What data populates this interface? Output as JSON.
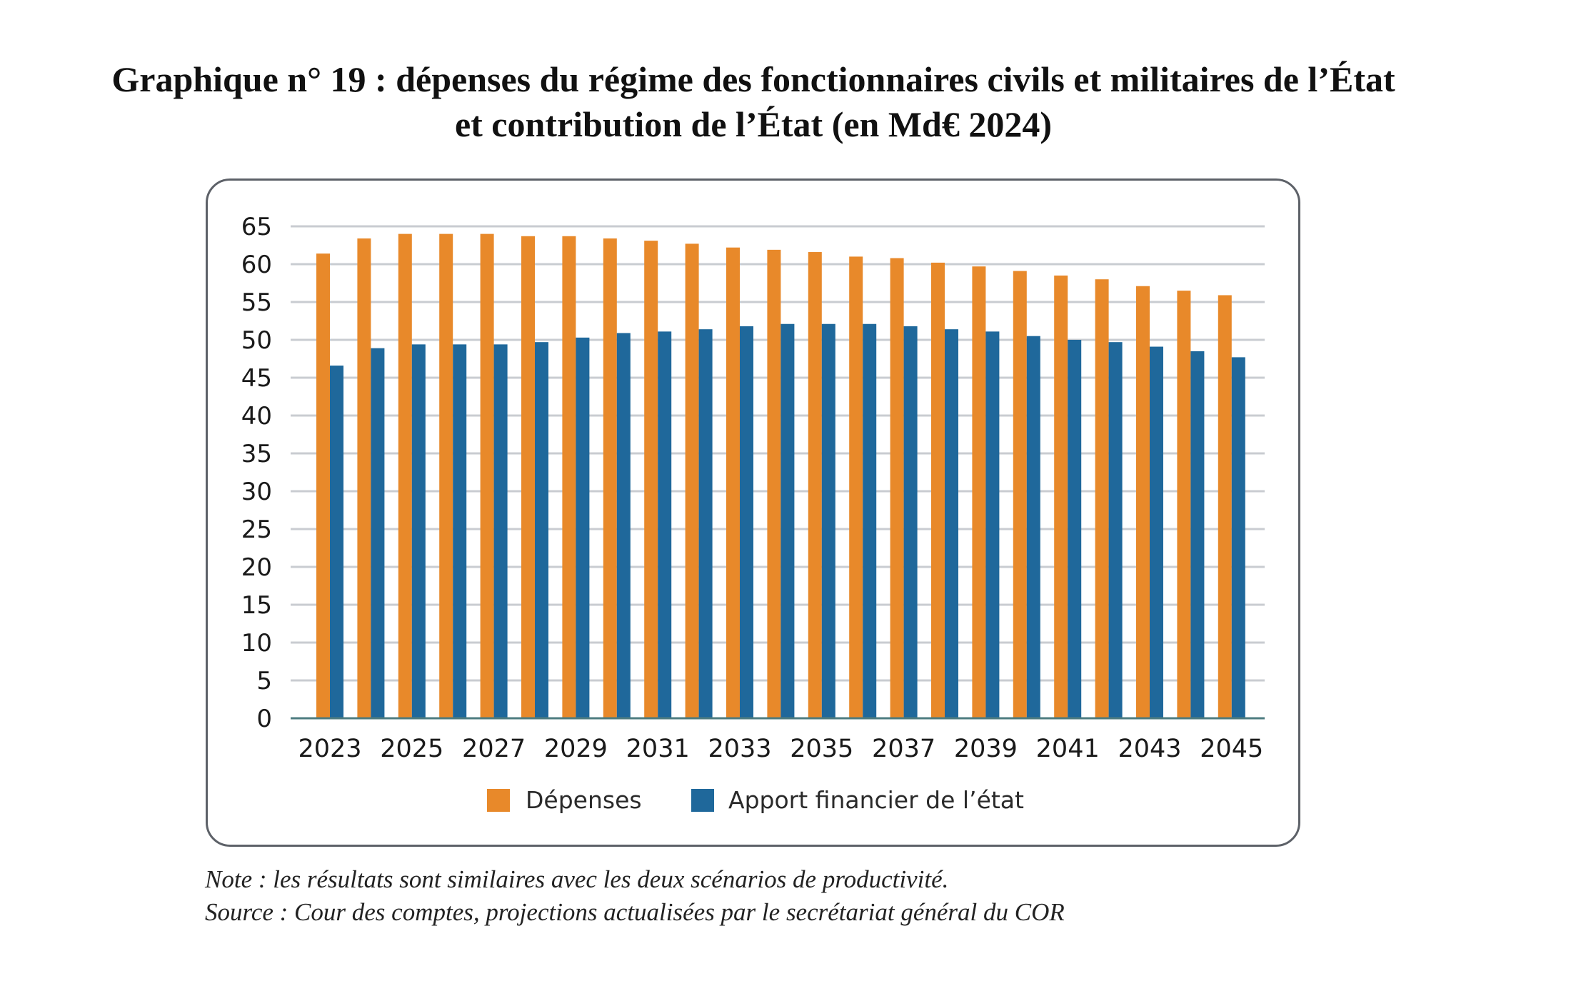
{
  "title": {
    "line1": "Graphique n° 19 : dépenses du régime des fonctionnaires civils et militaires de l’État",
    "line2": "et contribution de l’État (en Md€ 2024)"
  },
  "footnotes": {
    "note": "Note : les résultats sont similaires avec les deux scénarios de productivité.",
    "source": "Source : Cour des comptes, projections actualisées par le secrétariat général du COR"
  },
  "chart_data": {
    "type": "bar",
    "title": "Graphique n° 19 : dépenses du régime des fonctionnaires civils et militaires de l’État et contribution de l’État (en Md€ 2024)",
    "xlabel": "",
    "ylabel": "",
    "ylim": [
      0,
      65
    ],
    "yticks": [
      0,
      5,
      10,
      15,
      20,
      25,
      30,
      35,
      40,
      45,
      50,
      55,
      60,
      65
    ],
    "grid": true,
    "legend_position": "bottom",
    "categories": [
      "2023",
      "2024",
      "2025",
      "2026",
      "2027",
      "2028",
      "2029",
      "2030",
      "2031",
      "2032",
      "2033",
      "2034",
      "2035",
      "2036",
      "2037",
      "2038",
      "2039",
      "2040",
      "2041",
      "2042",
      "2043",
      "2044",
      "2045"
    ],
    "xtick_labels": [
      "2023",
      "2025",
      "2027",
      "2029",
      "2031",
      "2033",
      "2035",
      "2037",
      "2039",
      "2041",
      "2043",
      "2045"
    ],
    "series": [
      {
        "name": "Dépenses",
        "color": "#E8892A",
        "values": [
          61.4,
          63.4,
          64.0,
          64.0,
          64.0,
          63.7,
          63.7,
          63.4,
          63.1,
          62.7,
          62.2,
          61.9,
          61.6,
          61.0,
          60.8,
          60.2,
          59.7,
          59.1,
          58.5,
          58.0,
          57.1,
          56.5,
          55.9
        ]
      },
      {
        "name": "Apport financier de l’état",
        "color": "#1F689B",
        "values": [
          46.6,
          48.9,
          49.4,
          49.4,
          49.4,
          49.7,
          50.3,
          50.9,
          51.1,
          51.4,
          51.8,
          52.1,
          52.1,
          52.1,
          51.8,
          51.4,
          51.1,
          50.5,
          50.0,
          49.7,
          49.1,
          48.5,
          47.7
        ]
      }
    ],
    "colors": {
      "gridline": "#C9CCD1",
      "baseline": "#4E7C80",
      "tick_text": "#1a1a1a",
      "frame": "#5d6168"
    }
  }
}
